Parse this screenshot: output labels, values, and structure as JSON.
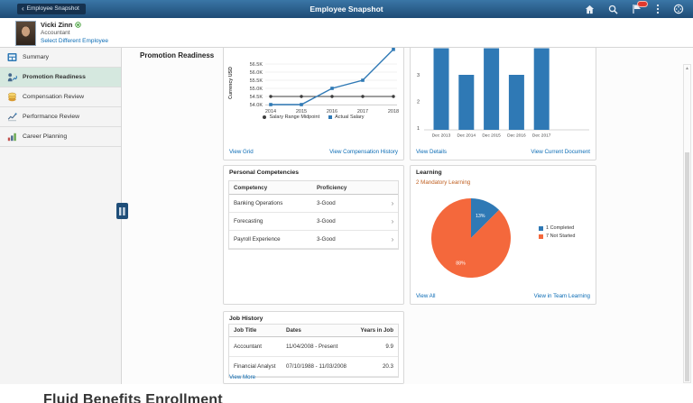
{
  "topbar": {
    "back_label": "Employee Snapshot",
    "title": "Employee Snapshot",
    "notification_badge": ""
  },
  "employee": {
    "name": "Vicki Zinn",
    "job_title": "Accountant",
    "select_link": "Select Different Employee"
  },
  "sidebar": {
    "items": [
      {
        "label": "Summary",
        "icon": "summary-icon",
        "selected": false
      },
      {
        "label": "Promotion Readiness",
        "icon": "promotion-readiness-icon",
        "selected": true
      },
      {
        "label": "Compensation Review",
        "icon": "compensation-review-icon",
        "selected": false
      },
      {
        "label": "Performance Review",
        "icon": "performance-review-icon",
        "selected": false
      },
      {
        "label": "Career Planning",
        "icon": "career-planning-icon",
        "selected": false
      }
    ]
  },
  "page": {
    "heading": "Promotion Readiness"
  },
  "tiles": {
    "compensation": {
      "links": {
        "left": "View Grid",
        "right": "View Compensation History"
      }
    },
    "performance": {
      "links": {
        "left": "View Details",
        "right": "View Current Document"
      }
    },
    "competencies": {
      "title": "Personal Competencies",
      "columns": [
        "Competency",
        "Proficiency"
      ],
      "rows": [
        [
          "Banking Operations",
          "3-Good"
        ],
        [
          "Forecasting",
          "3-Good"
        ],
        [
          "Payroll Experience",
          "3-Good"
        ]
      ]
    },
    "learning": {
      "title": "Learning",
      "mandatory_link": "2 Mandatory Learning",
      "links": {
        "left": "View All",
        "right": "View in Team Learning"
      }
    },
    "job_history": {
      "title": "Job History",
      "columns": [
        "Job Title",
        "Dates",
        "Years in Job"
      ],
      "rows": [
        [
          "Accountant",
          "11/04/2008 - Present",
          "9.9"
        ],
        [
          "Financial Analyst",
          "07/10/1988 - 11/03/2008",
          "20.3"
        ]
      ],
      "more_link": "View More"
    }
  },
  "chart_data": [
    {
      "id": "salary-line",
      "type": "line",
      "x": [
        2014,
        2015,
        2016,
        2017,
        2018
      ],
      "series": [
        {
          "name": "Salary Range Midpoint",
          "values": [
            54.5,
            54.5,
            54.5,
            54.5,
            54.5
          ],
          "color": "#3d3d3d",
          "marker": "circle"
        },
        {
          "name": "Actual Salary",
          "values": [
            54.0,
            54.0,
            55.0,
            55.5,
            57.4
          ],
          "color": "#2f79b5",
          "marker": "square"
        }
      ],
      "ylabel": "Currency USD",
      "yticks": [
        "54.0K",
        "54.5K",
        "55.0K",
        "55.5K",
        "56.0K",
        "56.5K"
      ],
      "ylim": [
        54.0,
        57.6
      ],
      "grid": true,
      "legend_position": "bottom",
      "note": "top of tile cut off by scroll; 2018 Actual Salary point exits visible area (estimated)"
    },
    {
      "id": "performance-bars",
      "type": "bar",
      "categories": [
        "Dec 2013",
        "Dec 2014",
        "Dec 2015",
        "Dec 2016",
        "Dec 2017"
      ],
      "values": [
        4,
        3,
        4,
        3,
        4
      ],
      "yticks": [
        1,
        2,
        3
      ],
      "ylim": [
        1,
        4
      ],
      "color": "#2f79b5",
      "grid": false,
      "note": "tops of Dec 2013/2015/2017 bars cut off by scroll; value 4 estimated"
    },
    {
      "id": "learning-pie",
      "type": "pie",
      "slices": [
        {
          "legend": "1 Completed",
          "count": 1,
          "pct_label": "13%",
          "color": "#2f79b5"
        },
        {
          "legend": "7 Not Started",
          "count": 7,
          "pct_label": "88%",
          "color": "#f4683c"
        }
      ],
      "legend_position": "right"
    }
  ],
  "caption": "Fluid Benefits Enrollment",
  "colors": {
    "header_top": "#3a76a6",
    "header_bottom": "#1e4b75",
    "link_blue": "#0b6cb5",
    "selected_sidebar": "#d5e8df",
    "mandatory_orange": "#bf5e1f",
    "pie_completed": "#2f79b5",
    "pie_not_started": "#f4683c",
    "bar_blue": "#2f79b5",
    "badge_red": "#e0392e"
  }
}
